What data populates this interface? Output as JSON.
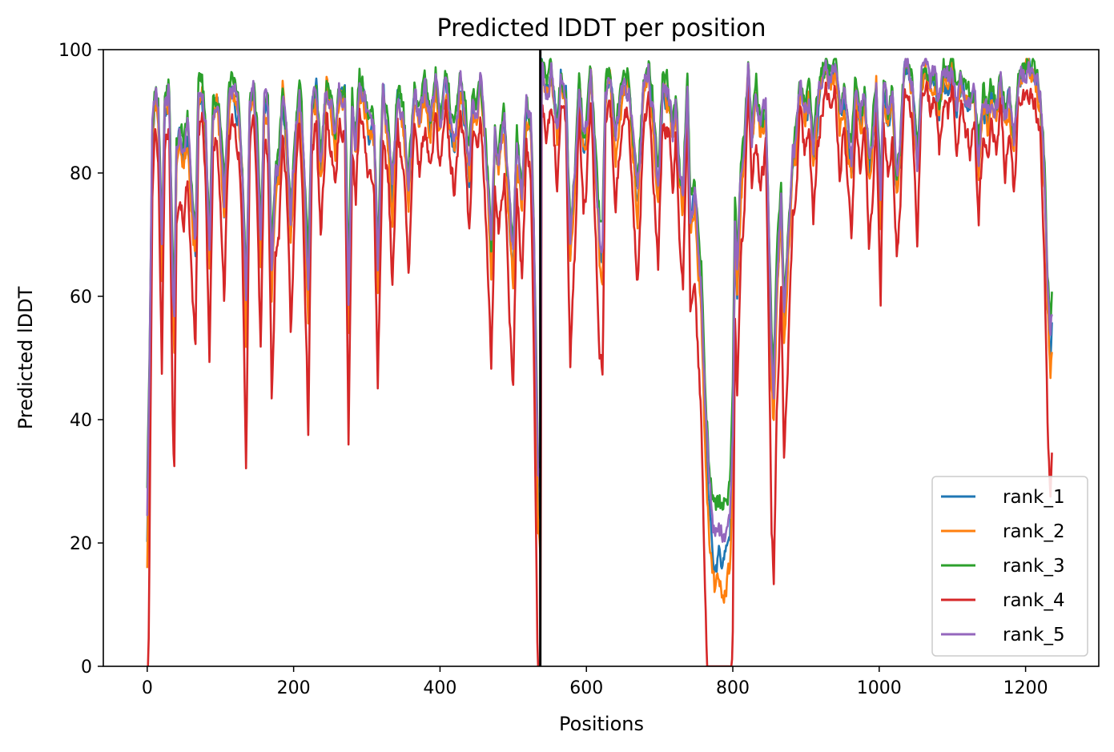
{
  "chart_data": {
    "type": "line",
    "title": "Predicted lDDT per position",
    "xlabel": "Positions",
    "ylabel": "Predicted lDDT",
    "xlim": [
      -60,
      1300
    ],
    "ylim": [
      0,
      100
    ],
    "xticks": [
      0,
      200,
      400,
      600,
      800,
      1000,
      1200
    ],
    "yticks": [
      0,
      20,
      40,
      60,
      80,
      100
    ],
    "grid": false,
    "legend_position": "bottom-right",
    "chain_break": 537,
    "series_length": 1237,
    "series": [
      {
        "name": "rank_1",
        "color": "#1f77b4",
        "seed": 11,
        "offset": 0.0,
        "dip_scale": 1.0
      },
      {
        "name": "rank_2",
        "color": "#ff7f0e",
        "seed": 23,
        "offset": -0.3,
        "dip_scale": 1.05
      },
      {
        "name": "rank_3",
        "color": "#2ca02c",
        "seed": 37,
        "offset": 0.8,
        "dip_scale": 0.9
      },
      {
        "name": "rank_4",
        "color": "#d62728",
        "seed": 53,
        "offset": -1.8,
        "dip_scale": 1.45
      },
      {
        "name": "rank_5",
        "color": "#9467bd",
        "seed": 71,
        "offset": 0.2,
        "dip_scale": 0.95
      }
    ],
    "profile": [
      [
        0,
        21
      ],
      [
        3,
        45
      ],
      [
        7,
        86
      ],
      [
        11,
        93
      ],
      [
        15,
        90
      ],
      [
        20,
        66
      ],
      [
        24,
        91
      ],
      [
        30,
        92
      ],
      [
        35,
        60
      ],
      [
        37,
        55
      ],
      [
        40,
        83
      ],
      [
        45,
        86
      ],
      [
        50,
        82
      ],
      [
        55,
        87
      ],
      [
        62,
        74
      ],
      [
        66,
        68
      ],
      [
        70,
        92
      ],
      [
        75,
        93
      ],
      [
        80,
        86
      ],
      [
        85,
        66
      ],
      [
        90,
        90
      ],
      [
        95,
        92
      ],
      [
        100,
        85
      ],
      [
        105,
        74
      ],
      [
        112,
        92
      ],
      [
        118,
        93
      ],
      [
        125,
        90
      ],
      [
        130,
        79
      ],
      [
        135,
        54
      ],
      [
        140,
        90
      ],
      [
        145,
        94
      ],
      [
        150,
        85
      ],
      [
        155,
        67
      ],
      [
        160,
        91
      ],
      [
        165,
        89
      ],
      [
        170,
        62
      ],
      [
        175,
        78
      ],
      [
        180,
        80
      ],
      [
        185,
        93
      ],
      [
        190,
        86
      ],
      [
        196,
        70
      ],
      [
        203,
        86
      ],
      [
        208,
        93
      ],
      [
        214,
        80
      ],
      [
        220,
        59
      ],
      [
        225,
        90
      ],
      [
        231,
        93
      ],
      [
        237,
        80
      ],
      [
        245,
        94
      ],
      [
        251,
        90
      ],
      [
        257,
        85
      ],
      [
        262,
        93
      ],
      [
        270,
        92
      ],
      [
        275,
        57
      ],
      [
        280,
        90
      ],
      [
        285,
        84
      ],
      [
        290,
        94
      ],
      [
        296,
        92
      ],
      [
        303,
        87
      ],
      [
        310,
        86
      ],
      [
        315,
        63
      ],
      [
        322,
        93
      ],
      [
        330,
        85
      ],
      [
        335,
        75
      ],
      [
        342,
        93
      ],
      [
        350,
        88
      ],
      [
        357,
        76
      ],
      [
        365,
        92
      ],
      [
        372,
        88
      ],
      [
        380,
        93
      ],
      [
        387,
        87
      ],
      [
        394,
        94
      ],
      [
        400,
        88
      ],
      [
        408,
        94
      ],
      [
        415,
        88
      ],
      [
        420,
        85
      ],
      [
        428,
        94
      ],
      [
        435,
        88
      ],
      [
        440,
        80
      ],
      [
        445,
        92
      ],
      [
        450,
        90
      ],
      [
        455,
        94
      ],
      [
        460,
        88
      ],
      [
        465,
        78
      ],
      [
        470,
        65
      ],
      [
        475,
        85
      ],
      [
        480,
        80
      ],
      [
        488,
        88
      ],
      [
        495,
        72
      ],
      [
        500,
        64
      ],
      [
        505,
        85
      ],
      [
        512,
        76
      ],
      [
        518,
        90
      ],
      [
        524,
        88
      ],
      [
        528,
        70
      ],
      [
        534,
        27
      ],
      [
        537,
        24
      ],
      [
        539,
        97
      ],
      [
        545,
        92
      ],
      [
        552,
        96
      ],
      [
        560,
        86
      ],
      [
        565,
        95
      ],
      [
        572,
        92
      ],
      [
        578,
        66
      ],
      [
        584,
        78
      ],
      [
        590,
        95
      ],
      [
        596,
        84
      ],
      [
        600,
        86
      ],
      [
        606,
        96
      ],
      [
        612,
        82
      ],
      [
        618,
        68
      ],
      [
        622,
        65
      ],
      [
        626,
        92
      ],
      [
        632,
        96
      ],
      [
        640,
        84
      ],
      [
        646,
        90
      ],
      [
        652,
        93
      ],
      [
        658,
        94
      ],
      [
        665,
        82
      ],
      [
        670,
        75
      ],
      [
        678,
        93
      ],
      [
        685,
        96
      ],
      [
        690,
        90
      ],
      [
        698,
        76
      ],
      [
        704,
        93
      ],
      [
        712,
        92
      ],
      [
        718,
        86
      ],
      [
        722,
        92
      ],
      [
        728,
        78
      ],
      [
        732,
        75
      ],
      [
        738,
        95
      ],
      [
        742,
        72
      ],
      [
        748,
        76
      ],
      [
        752,
        68
      ],
      [
        757,
        60
      ],
      [
        762,
        40
      ],
      [
        767,
        27
      ],
      [
        772,
        19
      ],
      [
        776,
        16
      ],
      [
        781,
        18
      ],
      [
        786,
        17
      ],
      [
        791,
        18
      ],
      [
        796,
        20
      ],
      [
        800,
        36
      ],
      [
        803,
        72
      ],
      [
        806,
        62
      ],
      [
        811,
        78
      ],
      [
        816,
        84
      ],
      [
        821,
        96
      ],
      [
        826,
        85
      ],
      [
        832,
        92
      ],
      [
        838,
        86
      ],
      [
        845,
        90
      ],
      [
        850,
        65
      ],
      [
        853,
        48
      ],
      [
        856,
        42
      ],
      [
        860,
        60
      ],
      [
        866,
        75
      ],
      [
        870,
        55
      ],
      [
        876,
        68
      ],
      [
        882,
        82
      ],
      [
        886,
        84
      ],
      [
        892,
        94
      ],
      [
        898,
        90
      ],
      [
        904,
        92
      ],
      [
        910,
        82
      ],
      [
        916,
        90
      ],
      [
        922,
        95
      ],
      [
        928,
        97
      ],
      [
        934,
        94
      ],
      [
        940,
        97
      ],
      [
        946,
        88
      ],
      [
        952,
        92
      ],
      [
        958,
        85
      ],
      [
        962,
        80
      ],
      [
        968,
        94
      ],
      [
        974,
        88
      ],
      [
        980,
        92
      ],
      [
        986,
        80
      ],
      [
        990,
        83
      ],
      [
        996,
        94
      ],
      [
        1002,
        74
      ],
      [
        1006,
        93
      ],
      [
        1012,
        88
      ],
      [
        1018,
        92
      ],
      [
        1024,
        78
      ],
      [
        1028,
        82
      ],
      [
        1034,
        96
      ],
      [
        1040,
        97
      ],
      [
        1046,
        93
      ],
      [
        1052,
        80
      ],
      [
        1058,
        96
      ],
      [
        1064,
        97
      ],
      [
        1070,
        94
      ],
      [
        1076,
        96
      ],
      [
        1082,
        90
      ],
      [
        1088,
        96
      ],
      [
        1094,
        94
      ],
      [
        1100,
        97
      ],
      [
        1106,
        90
      ],
      [
        1112,
        96
      ],
      [
        1118,
        92
      ],
      [
        1124,
        90
      ],
      [
        1130,
        93
      ],
      [
        1136,
        82
      ],
      [
        1142,
        92
      ],
      [
        1148,
        88
      ],
      [
        1154,
        93
      ],
      [
        1160,
        90
      ],
      [
        1166,
        94
      ],
      [
        1172,
        88
      ],
      [
        1178,
        92
      ],
      [
        1184,
        84
      ],
      [
        1190,
        95
      ],
      [
        1196,
        96
      ],
      [
        1202,
        97
      ],
      [
        1208,
        97
      ],
      [
        1214,
        95
      ],
      [
        1220,
        92
      ],
      [
        1226,
        78
      ],
      [
        1230,
        60
      ],
      [
        1234,
        50
      ],
      [
        1236,
        55
      ]
    ]
  }
}
